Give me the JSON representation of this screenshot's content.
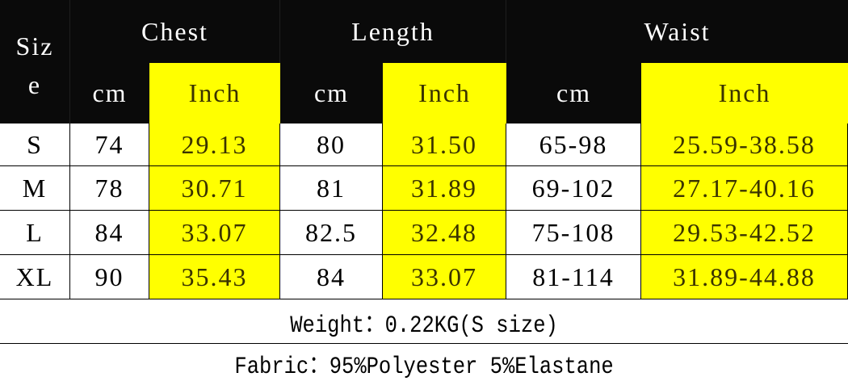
{
  "header": {
    "size_label_1": "Siz",
    "size_label_2": "e",
    "chest": "Chest",
    "length": "Length",
    "waist": "Waist",
    "cm": "cm",
    "inch": "Inch"
  },
  "rows": [
    {
      "size": "S",
      "chest_cm": "74",
      "chest_in": "29.13",
      "length_cm": "80",
      "length_in": "31.50",
      "waist_cm": "65-98",
      "waist_in": "25.59-38.58"
    },
    {
      "size": "M",
      "chest_cm": "78",
      "chest_in": "30.71",
      "length_cm": "81",
      "length_in": "31.89",
      "waist_cm": "69-102",
      "waist_in": "27.17-40.16"
    },
    {
      "size": "L",
      "chest_cm": "84",
      "chest_in": "33.07",
      "length_cm": "82.5",
      "length_in": "32.48",
      "waist_cm": "75-108",
      "waist_in": "29.53-42.52"
    },
    {
      "size": "XL",
      "chest_cm": "90",
      "chest_in": "35.43",
      "length_cm": "84",
      "length_in": "33.07",
      "waist_cm": "81-114",
      "waist_in": "31.89-44.88"
    }
  ],
  "weight": "Weight：0.22KG(S size)",
  "fabric": "Fabric：95%Polyester 5%Elastane",
  "colors": {
    "header_bg": "#0a0a0a",
    "highlight": "#ffff00",
    "highlight_text": "#3a3300"
  }
}
